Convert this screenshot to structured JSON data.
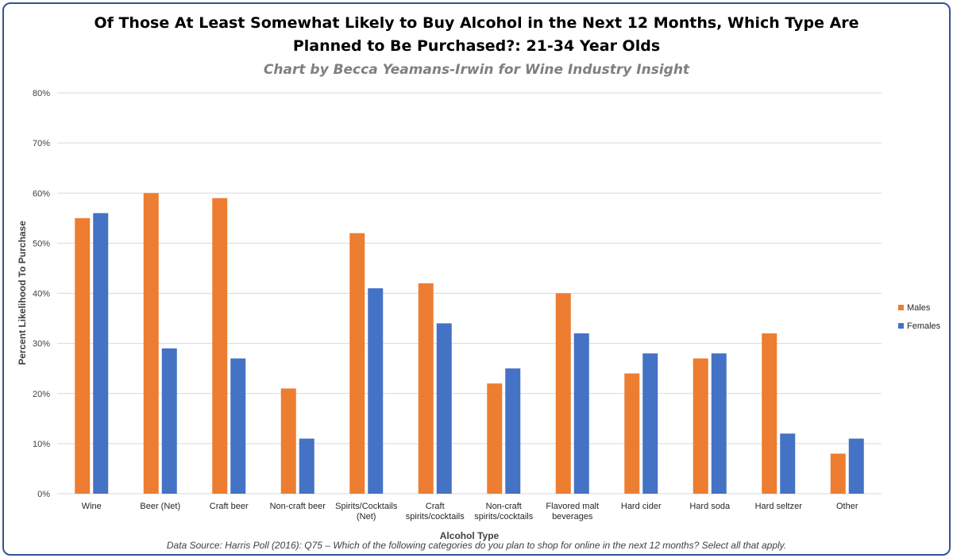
{
  "chart_data": {
    "type": "bar",
    "title_lines": [
      "Of Those At Least Somewhat Likely to Buy Alcohol in the Next 12 Months, Which Type Are",
      "Planned to Be Purchased?: 21-34 Year Olds"
    ],
    "subtitle": "Chart by Becca Yeamans-Irwin for Wine Industry Insight",
    "xlabel": "Alcohol Type",
    "ylabel": "Percent Likelihood To Purchase",
    "ylim": [
      0,
      80
    ],
    "yticks": [
      "0%",
      "10%",
      "20%",
      "30%",
      "40%",
      "50%",
      "60%",
      "70%",
      "80%"
    ],
    "categories": [
      [
        "Wine"
      ],
      [
        "Beer (Net)"
      ],
      [
        "Craft beer"
      ],
      [
        "Non-craft beer"
      ],
      [
        "Spirits/Cocktails",
        "(Net)"
      ],
      [
        "Craft",
        "spirits/cocktails"
      ],
      [
        "Non-craft",
        "spirits/cocktails"
      ],
      [
        "Flavored malt",
        "beverages"
      ],
      [
        "Hard cider"
      ],
      [
        "Hard soda"
      ],
      [
        "Hard seltzer"
      ],
      [
        "Other"
      ]
    ],
    "series": [
      {
        "name": "Males",
        "color": "#ed7d31",
        "values": [
          55,
          60,
          59,
          21,
          52,
          42,
          22,
          40,
          24,
          27,
          32,
          8
        ]
      },
      {
        "name": "Females",
        "color": "#4472c4",
        "values": [
          56,
          29,
          27,
          11,
          41,
          34,
          25,
          32,
          28,
          28,
          12,
          11
        ]
      }
    ],
    "legend_position": "right",
    "grid": true,
    "source_note": "Data Source: Harris Poll (2016): Q75 – Which of the following categories do you plan to shop for online in the next 12 months? Select all that apply."
  }
}
